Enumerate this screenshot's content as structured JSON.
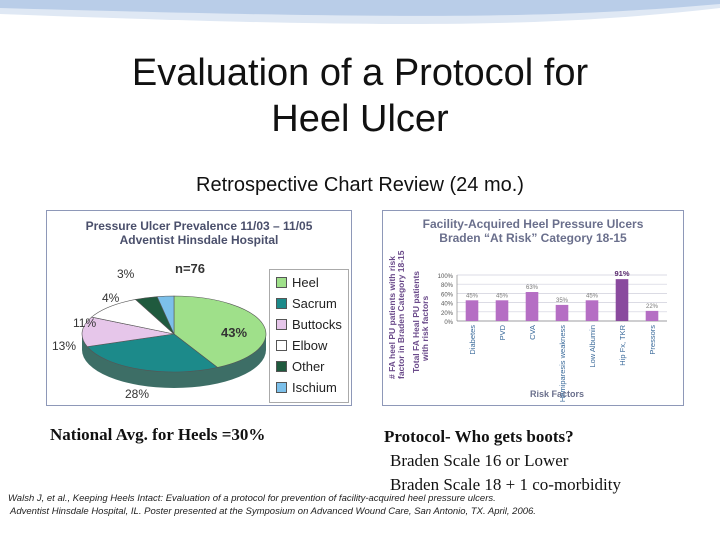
{
  "slide": {
    "title_line1": "Evaluation of a Protocol for",
    "title_line2": "Heel Ulcer",
    "subtitle": "Retrospective Chart Review (24 mo.)"
  },
  "pie_chart": {
    "title_line1": "Pressure Ulcer Prevalence 11/03 – 11/05",
    "title_line2": "Adventist Hinsdale Hospital",
    "n_label": "n=76",
    "labels": {
      "heel": "43%",
      "sacrum": "28%",
      "buttocks": "13%",
      "elbow": "11%",
      "other": "4%",
      "ischium": "3%"
    },
    "legend": [
      {
        "label": "Heel",
        "color": "#9fe08a"
      },
      {
        "label": "Sacrum",
        "color": "#1c8a8a"
      },
      {
        "label": "Buttocks",
        "color": "#e6c6ea"
      },
      {
        "label": "Elbow",
        "color": "#ffffff"
      },
      {
        "label": "Other",
        "color": "#1f5a3e"
      },
      {
        "label": "Ischium",
        "color": "#7cc0ea"
      }
    ]
  },
  "bar_chart": {
    "title_line1": "Facility-Acquired Heel Pressure Ulcers",
    "title_line2": "Braden “At Risk” Category 18-15",
    "ylabel_line1": "# FA heel PU patients with risk",
    "ylabel_line2": "factor in Braden Category 18-15",
    "ylabel2_line1": "Total FA Heal PU patients",
    "ylabel2_line2": "with risk factors",
    "xlabel": "Risk Factors",
    "y_ticks": [
      "100%",
      "80%",
      "60%",
      "40%",
      "20%",
      "0%"
    ],
    "value_labels": [
      "45%",
      "45%",
      "63%",
      "35%",
      "45%",
      "",
      "91%",
      "22%"
    ]
  },
  "chart_data": [
    {
      "type": "pie",
      "title": "Pressure Ulcer Prevalence 11/03 – 11/05 Adventist Hinsdale Hospital",
      "categories": [
        "Heel",
        "Sacrum",
        "Buttocks",
        "Elbow",
        "Other",
        "Ischium"
      ],
      "values": [
        43,
        28,
        13,
        11,
        4,
        3
      ]
    },
    {
      "type": "bar",
      "title": "Facility-Acquired Heel Pressure Ulcers Braden “At Risk” Category 18-15",
      "categories": [
        "Diabetes",
        "PVD",
        "CVA",
        "Hemiparesis weakness",
        "Low Albumin",
        "Hip Fx, TKR",
        "Pressors"
      ],
      "values": [
        45,
        45,
        63,
        35,
        45,
        91,
        22
      ],
      "xlabel": "Risk Factors",
      "ylim": [
        0,
        100
      ],
      "grid": true
    }
  ],
  "captions": {
    "national_avg": "National Avg. for Heels =30%",
    "protocol_title": "Protocol- Who gets boots?",
    "protocol_line1": "Braden Scale 16 or Lower",
    "protocol_line2": "Braden Scale 18 + 1 co-morbidity"
  },
  "citation": {
    "line1": "Walsh J, et al., Keeping Heels Intact: Evaluation of a protocol for prevention of facility-acquired heel pressure ulcers.",
    "line2": "Adventist Hinsdale Hospital, IL. Poster presented at the Symposium on Advanced Wound Care, San Antonio, TX. April, 2006."
  },
  "colors": {
    "accent_blue": "#5f8fd0",
    "bar_purple": "#8a4a9e",
    "panel_border": "#8e98b8"
  }
}
